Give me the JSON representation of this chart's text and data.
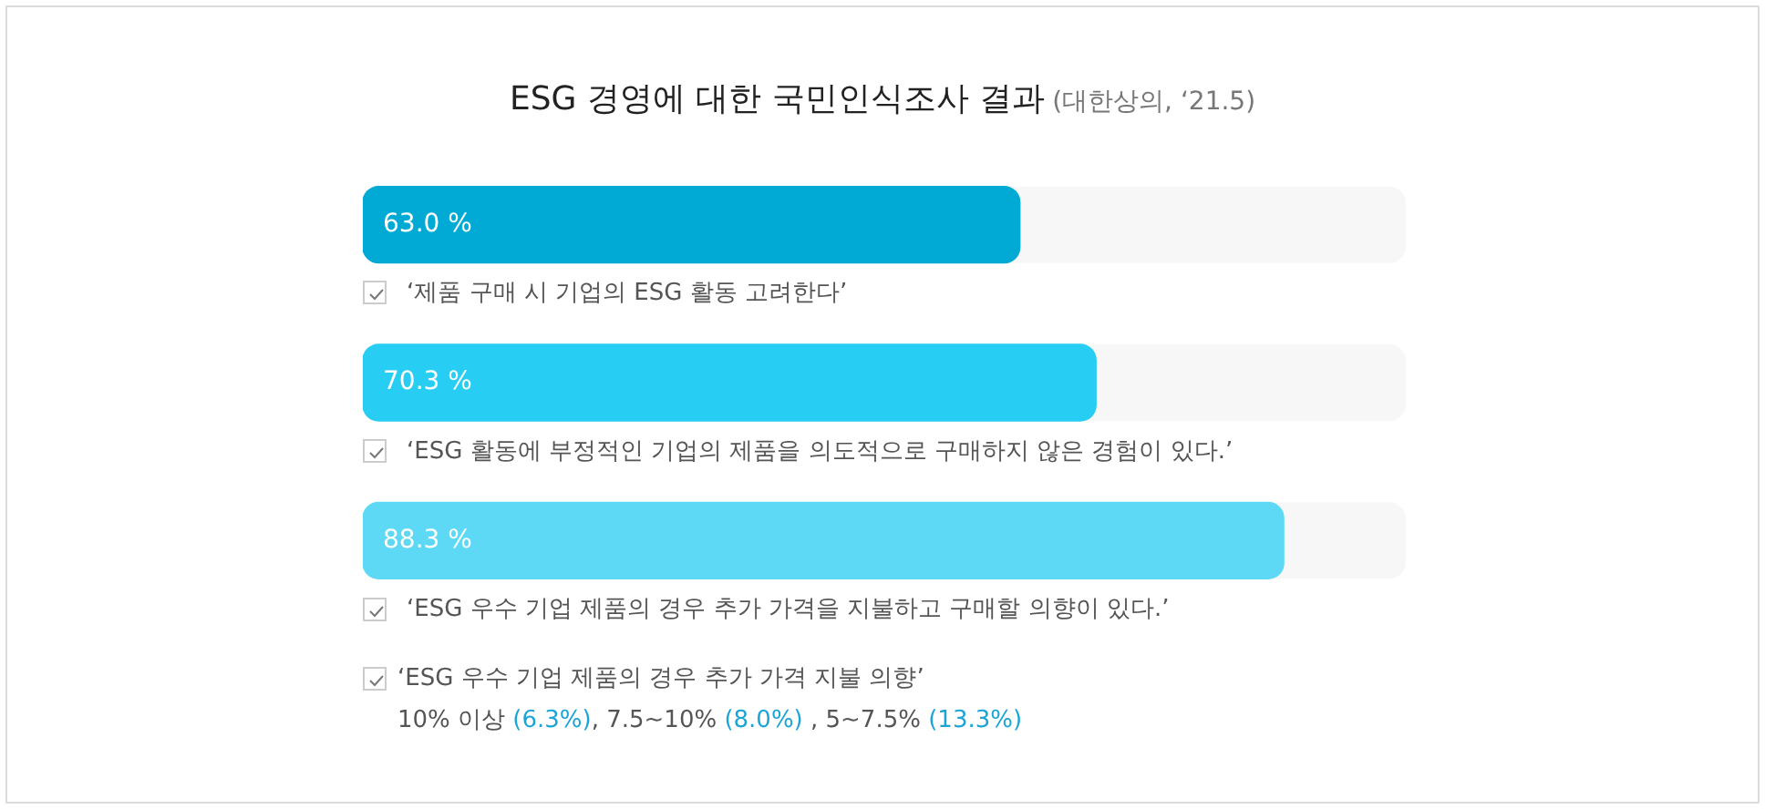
{
  "chart_data": {
    "type": "bar",
    "orientation": "horizontal",
    "title": "ESG 경영에 대한 국민인식조사 결과",
    "subtitle": "(대한상의, ‘21.5)",
    "categories": [
      "‘제품 구매 시 기업의 ESG 활동 고려한다’",
      "‘ESG 활동에 부정적인 기업의 제품을 의도적으로 구매하지 않은 경험이 있다.’",
      "‘ESG 우수 기업 제품의 경우 추가 가격을 지불하고 구매할 의향이 있다.’"
    ],
    "values": [
      63.0,
      70.3,
      88.3
    ],
    "colors": [
      "#00aad4",
      "#27cdf2",
      "#5dd9f5"
    ],
    "value_labels": [
      "63.0 %",
      "70.3 %",
      "88.3 %"
    ],
    "xlim": [
      0,
      100
    ],
    "tick_labels": "y",
    "legend": false,
    "annotations": [
      "‘ESG 우수 기업 제품의 경우 추가 가격 지불 의향’",
      "10% 이상 (6.3%), 7.5~10% (8.0%) , 5~7.5% (13.3%)"
    ]
  }
}
